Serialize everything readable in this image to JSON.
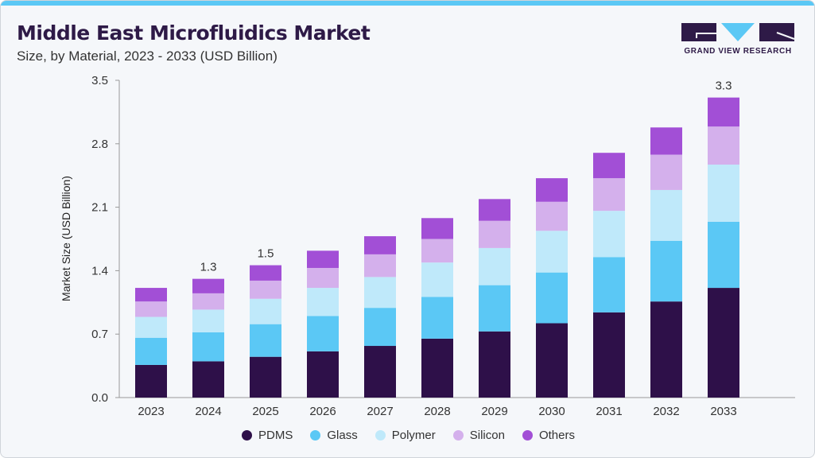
{
  "header": {
    "title": "Middle East Microfluidics Market",
    "subtitle": "Size, by Material, 2023 - 2033 (USD Billion)"
  },
  "logo": {
    "text": "GRAND VIEW RESEARCH"
  },
  "chart_data": {
    "type": "bar",
    "stacked": true,
    "title": "Middle East Microfluidics Market",
    "subtitle": "Size, by Material, 2023 - 2033 (USD Billion)",
    "xlabel": "",
    "ylabel": "Market Size (USD Billion)",
    "ylim": [
      0,
      3.5
    ],
    "yticks": [
      "0.0",
      "0.7",
      "1.4",
      "2.1",
      "2.8",
      "3.5"
    ],
    "ytick_values": [
      0,
      0.7,
      1.4,
      2.1,
      2.8,
      3.5
    ],
    "categories": [
      "2023",
      "2024",
      "2025",
      "2026",
      "2027",
      "2028",
      "2029",
      "2030",
      "2031",
      "2032",
      "2033"
    ],
    "series": [
      {
        "name": "PDMS",
        "color": "#2e1049",
        "values": [
          0.36,
          0.4,
          0.45,
          0.51,
          0.57,
          0.65,
          0.73,
          0.82,
          0.94,
          1.06,
          1.21
        ]
      },
      {
        "name": "Glass",
        "color": "#5bc8f5",
        "values": [
          0.3,
          0.32,
          0.36,
          0.39,
          0.42,
          0.46,
          0.51,
          0.56,
          0.61,
          0.67,
          0.73
        ]
      },
      {
        "name": "Polymer",
        "color": "#bfe9fa",
        "values": [
          0.23,
          0.25,
          0.28,
          0.31,
          0.34,
          0.38,
          0.41,
          0.46,
          0.51,
          0.56,
          0.63
        ]
      },
      {
        "name": "Silicon",
        "color": "#d4b0ec",
        "values": [
          0.17,
          0.18,
          0.2,
          0.22,
          0.25,
          0.26,
          0.3,
          0.32,
          0.36,
          0.39,
          0.42
        ]
      },
      {
        "name": "Others",
        "color": "#a24fd6",
        "values": [
          0.15,
          0.16,
          0.17,
          0.19,
          0.2,
          0.23,
          0.24,
          0.26,
          0.28,
          0.3,
          0.32
        ]
      }
    ],
    "data_labels": [
      {
        "category": "2024",
        "text": "1.3"
      },
      {
        "category": "2025",
        "text": "1.5"
      },
      {
        "category": "2033",
        "text": "3.3"
      }
    ],
    "legend_position": "bottom",
    "grid": false
  }
}
